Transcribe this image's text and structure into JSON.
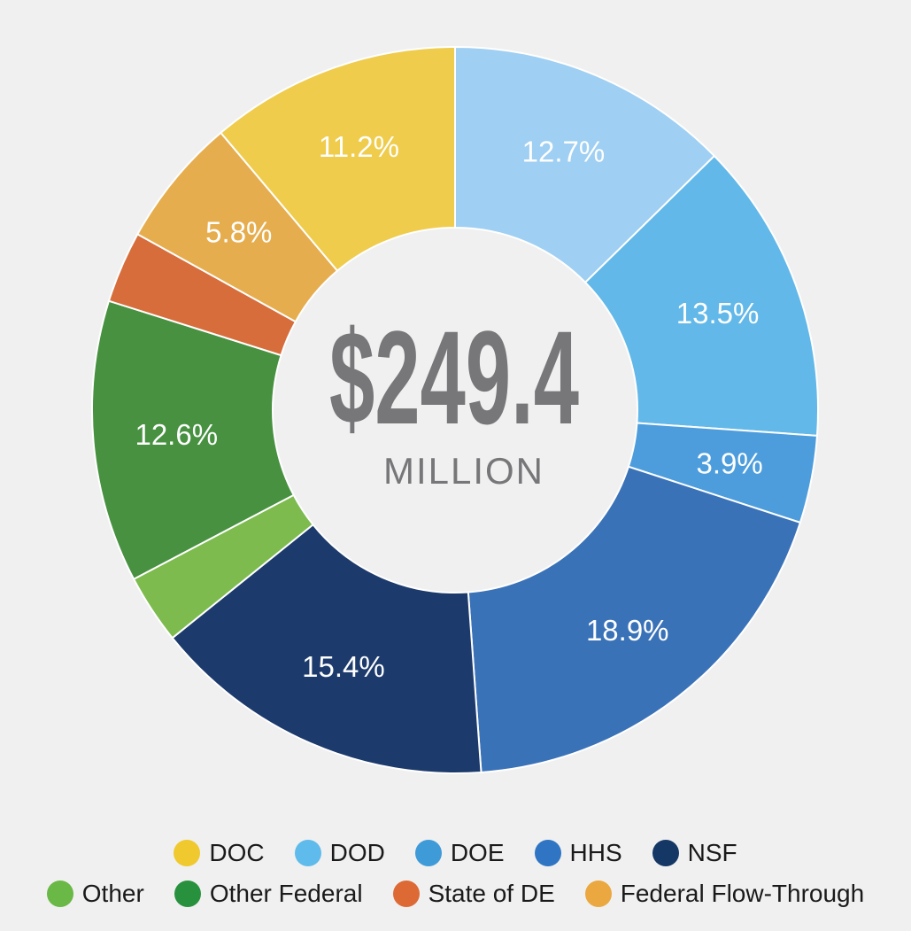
{
  "chart_data": {
    "type": "pie",
    "style": "donut",
    "center": {
      "amount": "$249.4",
      "unit": "MILLION"
    },
    "start_angle_deg": 0,
    "direction": "clockwise",
    "slices": [
      {
        "category": "DOD",
        "value": 12.7,
        "label": "12.7%",
        "color": "#9fcff2"
      },
      {
        "category": "DOD",
        "value": 13.5,
        "label": "13.5%",
        "color": "#62b8e8"
      },
      {
        "category": "DOE",
        "value": 3.9,
        "label": "3.9%",
        "color": "#4d9ddd"
      },
      {
        "category": "HHS",
        "value": 18.9,
        "label": "18.9%",
        "color": "#3a72b8"
      },
      {
        "category": "NSF",
        "value": 15.4,
        "label": "15.4%",
        "color": "#1c3a6b"
      },
      {
        "category": "Other",
        "value": 3.1,
        "label": "",
        "color": "#7dbb4f"
      },
      {
        "category": "Other Federal",
        "value": 12.6,
        "label": "12.6%",
        "color": "#479140"
      },
      {
        "category": "State of DE",
        "value": 3.2,
        "label": "",
        "color": "#d66d3b"
      },
      {
        "category": "Federal Flow-Through",
        "value": 5.8,
        "label": "5.8%",
        "color": "#e6ad4e"
      },
      {
        "category": "DOC",
        "value": 11.2,
        "label": "11.2%",
        "color": "#efcc4c"
      }
    ],
    "legend": {
      "position": "bottom",
      "rows": [
        [
          {
            "label": "DOC",
            "color": "#efc92d"
          },
          {
            "label": "DOD",
            "color": "#5fbbeb"
          },
          {
            "label": "DOE",
            "color": "#3f9ad8"
          },
          {
            "label": "HHS",
            "color": "#2f75c4"
          },
          {
            "label": "NSF",
            "color": "#143766"
          }
        ],
        [
          {
            "label": "Other",
            "color": "#6ab845"
          },
          {
            "label": "Other Federal",
            "color": "#28913d"
          },
          {
            "label": "State of DE",
            "color": "#dd6a34"
          },
          {
            "label": "Federal Flow-Through",
            "color": "#eba740"
          }
        ]
      ]
    }
  }
}
